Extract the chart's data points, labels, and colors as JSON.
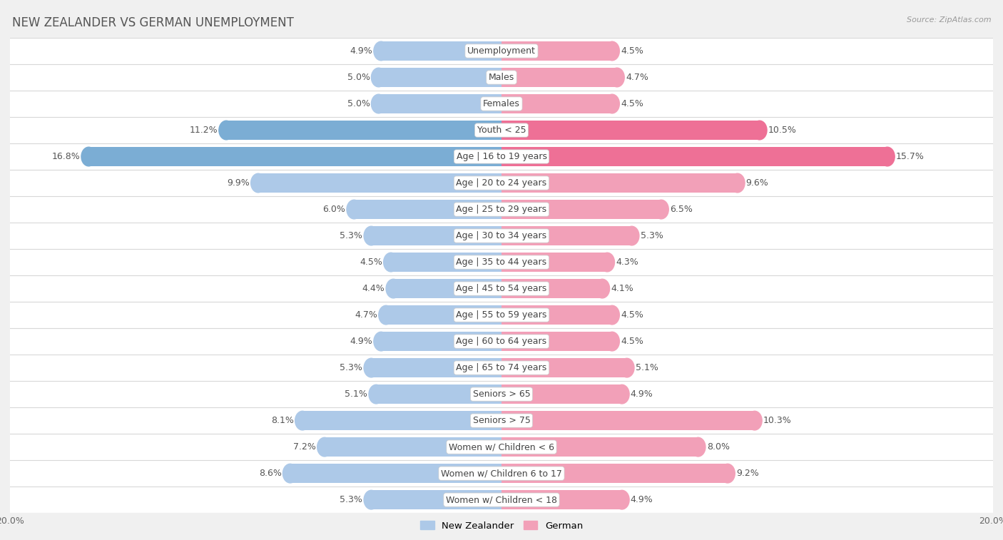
{
  "title": "NEW ZEALANDER VS GERMAN UNEMPLOYMENT",
  "source": "Source: ZipAtlas.com",
  "categories": [
    "Unemployment",
    "Males",
    "Females",
    "Youth < 25",
    "Age | 16 to 19 years",
    "Age | 20 to 24 years",
    "Age | 25 to 29 years",
    "Age | 30 to 34 years",
    "Age | 35 to 44 years",
    "Age | 45 to 54 years",
    "Age | 55 to 59 years",
    "Age | 60 to 64 years",
    "Age | 65 to 74 years",
    "Seniors > 65",
    "Seniors > 75",
    "Women w/ Children < 6",
    "Women w/ Children 6 to 17",
    "Women w/ Children < 18"
  ],
  "nz_values": [
    4.9,
    5.0,
    5.0,
    11.2,
    16.8,
    9.9,
    6.0,
    5.3,
    4.5,
    4.4,
    4.7,
    4.9,
    5.3,
    5.1,
    8.1,
    7.2,
    8.6,
    5.3
  ],
  "de_values": [
    4.5,
    4.7,
    4.5,
    10.5,
    15.7,
    9.6,
    6.5,
    5.3,
    4.3,
    4.1,
    4.5,
    4.5,
    5.1,
    4.9,
    10.3,
    8.0,
    9.2,
    4.9
  ],
  "nz_color": "#adc9e8",
  "de_color": "#f2a0b8",
  "highlight_nz_color": "#7badd4",
  "highlight_de_color": "#ee7096",
  "bg_color": "#f0f0f0",
  "row_color": "#ffffff",
  "row_sep_color": "#d8d8d8",
  "max_val": 20.0,
  "label_fontsize": 9.0,
  "title_fontsize": 12,
  "bar_height": 0.72,
  "legend_nz": "New Zealander",
  "legend_de": "German",
  "value_color": "#555555",
  "label_color": "#444444",
  "highlight_rows": [
    3,
    4
  ]
}
